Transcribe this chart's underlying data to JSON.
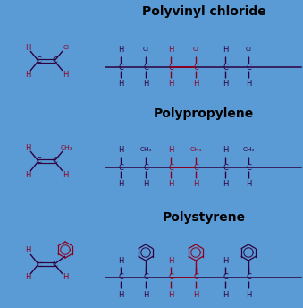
{
  "bg_color": "#5b9bd5",
  "dark_color": "#2d0040",
  "red_color": "#8b0020",
  "black_color": "#000000",
  "titles": [
    "Polyvinyl chloride",
    "Polypropylene",
    "Polystyrene"
  ],
  "title_fontsize": 10,
  "fs": 6.0,
  "fsm": 5.2
}
